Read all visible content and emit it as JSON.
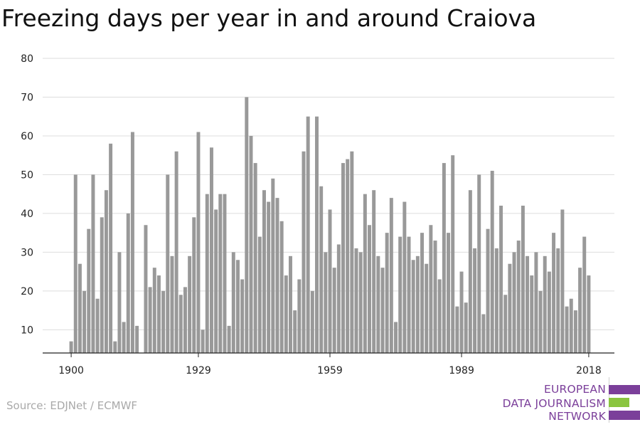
{
  "title": "Freezing days per year in and around Craiova",
  "source": "Source: EDJNet / ECMWF",
  "logo": {
    "lines": [
      "EUROPEAN",
      "DATA JOURNALISM",
      "NETWORK"
    ],
    "colors": [
      "#7b3f9a",
      "#8ac53f",
      "#7b3f9a"
    ]
  },
  "chart_data": {
    "type": "bar",
    "title": "Freezing days per year in and around Craiova",
    "xlabel": "",
    "ylabel": "",
    "bar_color": "#999999",
    "grid": true,
    "xlim": [
      1900,
      2018
    ],
    "ylim": [
      4,
      80
    ],
    "yticks": [
      10,
      20,
      30,
      40,
      50,
      60,
      70,
      80
    ],
    "xticks": [
      1900,
      1929,
      1959,
      1989,
      2018
    ],
    "x": [
      1900,
      1901,
      1902,
      1903,
      1904,
      1905,
      1906,
      1907,
      1908,
      1909,
      1910,
      1911,
      1912,
      1913,
      1914,
      1915,
      1916,
      1917,
      1918,
      1919,
      1920,
      1921,
      1922,
      1923,
      1924,
      1925,
      1926,
      1927,
      1928,
      1929,
      1930,
      1931,
      1932,
      1933,
      1934,
      1935,
      1936,
      1937,
      1938,
      1939,
      1940,
      1941,
      1942,
      1943,
      1944,
      1945,
      1946,
      1947,
      1948,
      1949,
      1950,
      1951,
      1952,
      1953,
      1954,
      1955,
      1956,
      1957,
      1958,
      1959,
      1960,
      1961,
      1962,
      1963,
      1964,
      1965,
      1966,
      1967,
      1968,
      1969,
      1970,
      1971,
      1972,
      1973,
      1974,
      1975,
      1976,
      1977,
      1978,
      1979,
      1980,
      1981,
      1982,
      1983,
      1984,
      1985,
      1986,
      1987,
      1988,
      1989,
      1990,
      1991,
      1992,
      1993,
      1994,
      1995,
      1996,
      1997,
      1998,
      1999,
      2000,
      2001,
      2002,
      2003,
      2004,
      2005,
      2006,
      2007,
      2008,
      2009,
      2010,
      2011,
      2012,
      2013,
      2014,
      2015,
      2016,
      2017,
      2018
    ],
    "values": [
      7,
      50,
      27,
      20,
      36,
      50,
      18,
      39,
      46,
      58,
      7,
      30,
      12,
      40,
      61,
      11,
      4,
      37,
      21,
      26,
      24,
      20,
      50,
      29,
      56,
      19,
      21,
      29,
      39,
      61,
      10,
      45,
      57,
      41,
      45,
      45,
      11,
      30,
      28,
      23,
      70,
      60,
      53,
      34,
      46,
      43,
      49,
      44,
      38,
      24,
      29,
      15,
      23,
      56,
      65,
      20,
      65,
      47,
      30,
      41,
      26,
      32,
      53,
      54,
      56,
      31,
      30,
      45,
      37,
      46,
      29,
      26,
      35,
      44,
      12,
      34,
      43,
      34,
      28,
      29,
      35,
      27,
      37,
      33,
      23,
      53,
      35,
      55,
      16,
      25,
      17,
      46,
      31,
      50,
      14,
      36,
      51,
      31,
      42,
      19,
      27,
      30,
      33,
      42,
      29,
      24,
      30,
      20,
      29,
      25,
      35,
      31,
      41,
      16,
      18,
      15,
      26,
      34,
      24
    ]
  }
}
